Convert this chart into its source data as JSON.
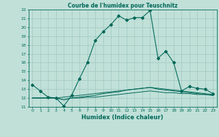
{
  "title": "Courbe de l'humidex pour Teuschnitz",
  "xlabel": "Humidex (Indice chaleur)",
  "bg_color": "#c0e0d8",
  "grid_color": "#a0c8c0",
  "line_color": "#006858",
  "xlim": [
    -0.5,
    23.5
  ],
  "ylim": [
    11,
    22
  ],
  "xticks": [
    0,
    1,
    2,
    3,
    4,
    5,
    6,
    7,
    8,
    9,
    10,
    11,
    12,
    13,
    14,
    15,
    16,
    17,
    18,
    19,
    20,
    21,
    22,
    23
  ],
  "yticks": [
    11,
    12,
    13,
    14,
    15,
    16,
    17,
    18,
    19,
    20,
    21,
    22
  ],
  "series_main": [
    13.5,
    12.8,
    12.1,
    12.0,
    11.1,
    12.3,
    14.2,
    16.0,
    18.5,
    19.5,
    20.3,
    21.3,
    20.8,
    21.1,
    21.1,
    21.9,
    16.5,
    17.3,
    16.0,
    12.8,
    13.3,
    13.1,
    13.0,
    12.5
  ],
  "series_flat": [
    [
      12.0,
      12.0,
      12.0,
      12.0,
      11.8,
      12.0,
      12.0,
      12.1,
      12.1,
      12.2,
      12.3,
      12.4,
      12.5,
      12.6,
      12.7,
      12.8,
      12.7,
      12.6,
      12.6,
      12.5,
      12.5,
      12.4,
      12.4,
      12.3
    ],
    [
      12.0,
      12.0,
      12.0,
      12.0,
      11.8,
      12.0,
      12.1,
      12.2,
      12.3,
      12.5,
      12.6,
      12.7,
      12.9,
      13.0,
      13.1,
      13.2,
      13.0,
      12.9,
      12.8,
      12.7,
      12.6,
      12.5,
      12.4,
      12.3
    ],
    [
      12.0,
      12.0,
      12.0,
      12.0,
      12.1,
      12.2,
      12.3,
      12.4,
      12.5,
      12.6,
      12.7,
      12.8,
      12.9,
      13.0,
      13.1,
      13.2,
      13.1,
      13.0,
      12.9,
      12.8,
      12.7,
      12.6,
      12.5,
      12.4
    ]
  ]
}
